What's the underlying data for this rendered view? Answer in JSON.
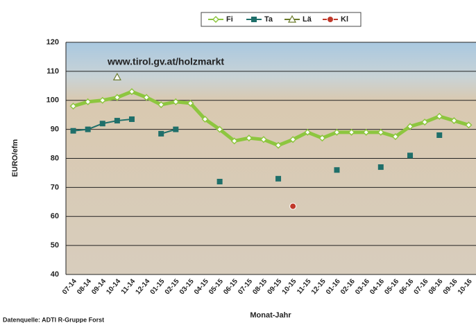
{
  "chart_data": {
    "type": "line",
    "annotation": "www.tirol.gv.at/holzmarkt",
    "y_label": "EURO/efm",
    "x_label": "Monat-Jahr",
    "source": "Datenquelle: ADTI R-Gruppe Forst",
    "categories": [
      "07-14",
      "08-14",
      "09-14",
      "10-14",
      "11-14",
      "12-14",
      "01-15",
      "02-15",
      "03-15",
      "04-15",
      "05-15",
      "06-15",
      "07-15",
      "08-15",
      "09-15",
      "10-15",
      "11-15",
      "12-15",
      "01-16",
      "02-16",
      "03-16",
      "04-16",
      "05-16",
      "06-16",
      "07-16",
      "08-16",
      "09-16",
      "10-16"
    ],
    "series": [
      {
        "name": "Fi",
        "color": "#8dc63f",
        "marker": "diamond",
        "values": [
          98,
          99.5,
          100,
          101,
          103,
          101,
          98.5,
          99.5,
          99,
          93.5,
          90,
          86,
          87,
          86.5,
          84.5,
          86.5,
          89,
          87,
          89,
          89,
          89,
          89,
          87.5,
          91,
          92.5,
          94.5,
          93,
          91.5
        ]
      },
      {
        "name": "Ta",
        "color": "#1f6f6a",
        "marker": "square",
        "values": [
          89.5,
          90,
          92,
          93,
          93.5,
          null,
          88.5,
          90,
          null,
          null,
          72,
          null,
          null,
          null,
          73,
          null,
          null,
          null,
          76,
          null,
          null,
          77,
          null,
          81,
          null,
          88,
          null,
          null
        ]
      },
      {
        "name": "Lä",
        "color": "#6a7a2a",
        "marker": "triangle",
        "values": [
          null,
          null,
          null,
          108,
          null,
          null,
          null,
          null,
          null,
          null,
          null,
          null,
          null,
          null,
          null,
          null,
          null,
          null,
          null,
          null,
          null,
          null,
          null,
          null,
          null,
          null,
          null,
          null
        ]
      },
      {
        "name": "Kl",
        "color": "#c0392b",
        "marker": "circle",
        "values": [
          null,
          null,
          null,
          null,
          null,
          null,
          null,
          null,
          null,
          null,
          null,
          null,
          null,
          null,
          null,
          63.5,
          null,
          null,
          null,
          null,
          null,
          null,
          null,
          null,
          null,
          null,
          null,
          null
        ]
      }
    ],
    "ylim": [
      40,
      120
    ],
    "yticks": [
      40,
      50,
      60,
      70,
      80,
      90,
      100,
      110,
      120
    ],
    "grid": true
  }
}
